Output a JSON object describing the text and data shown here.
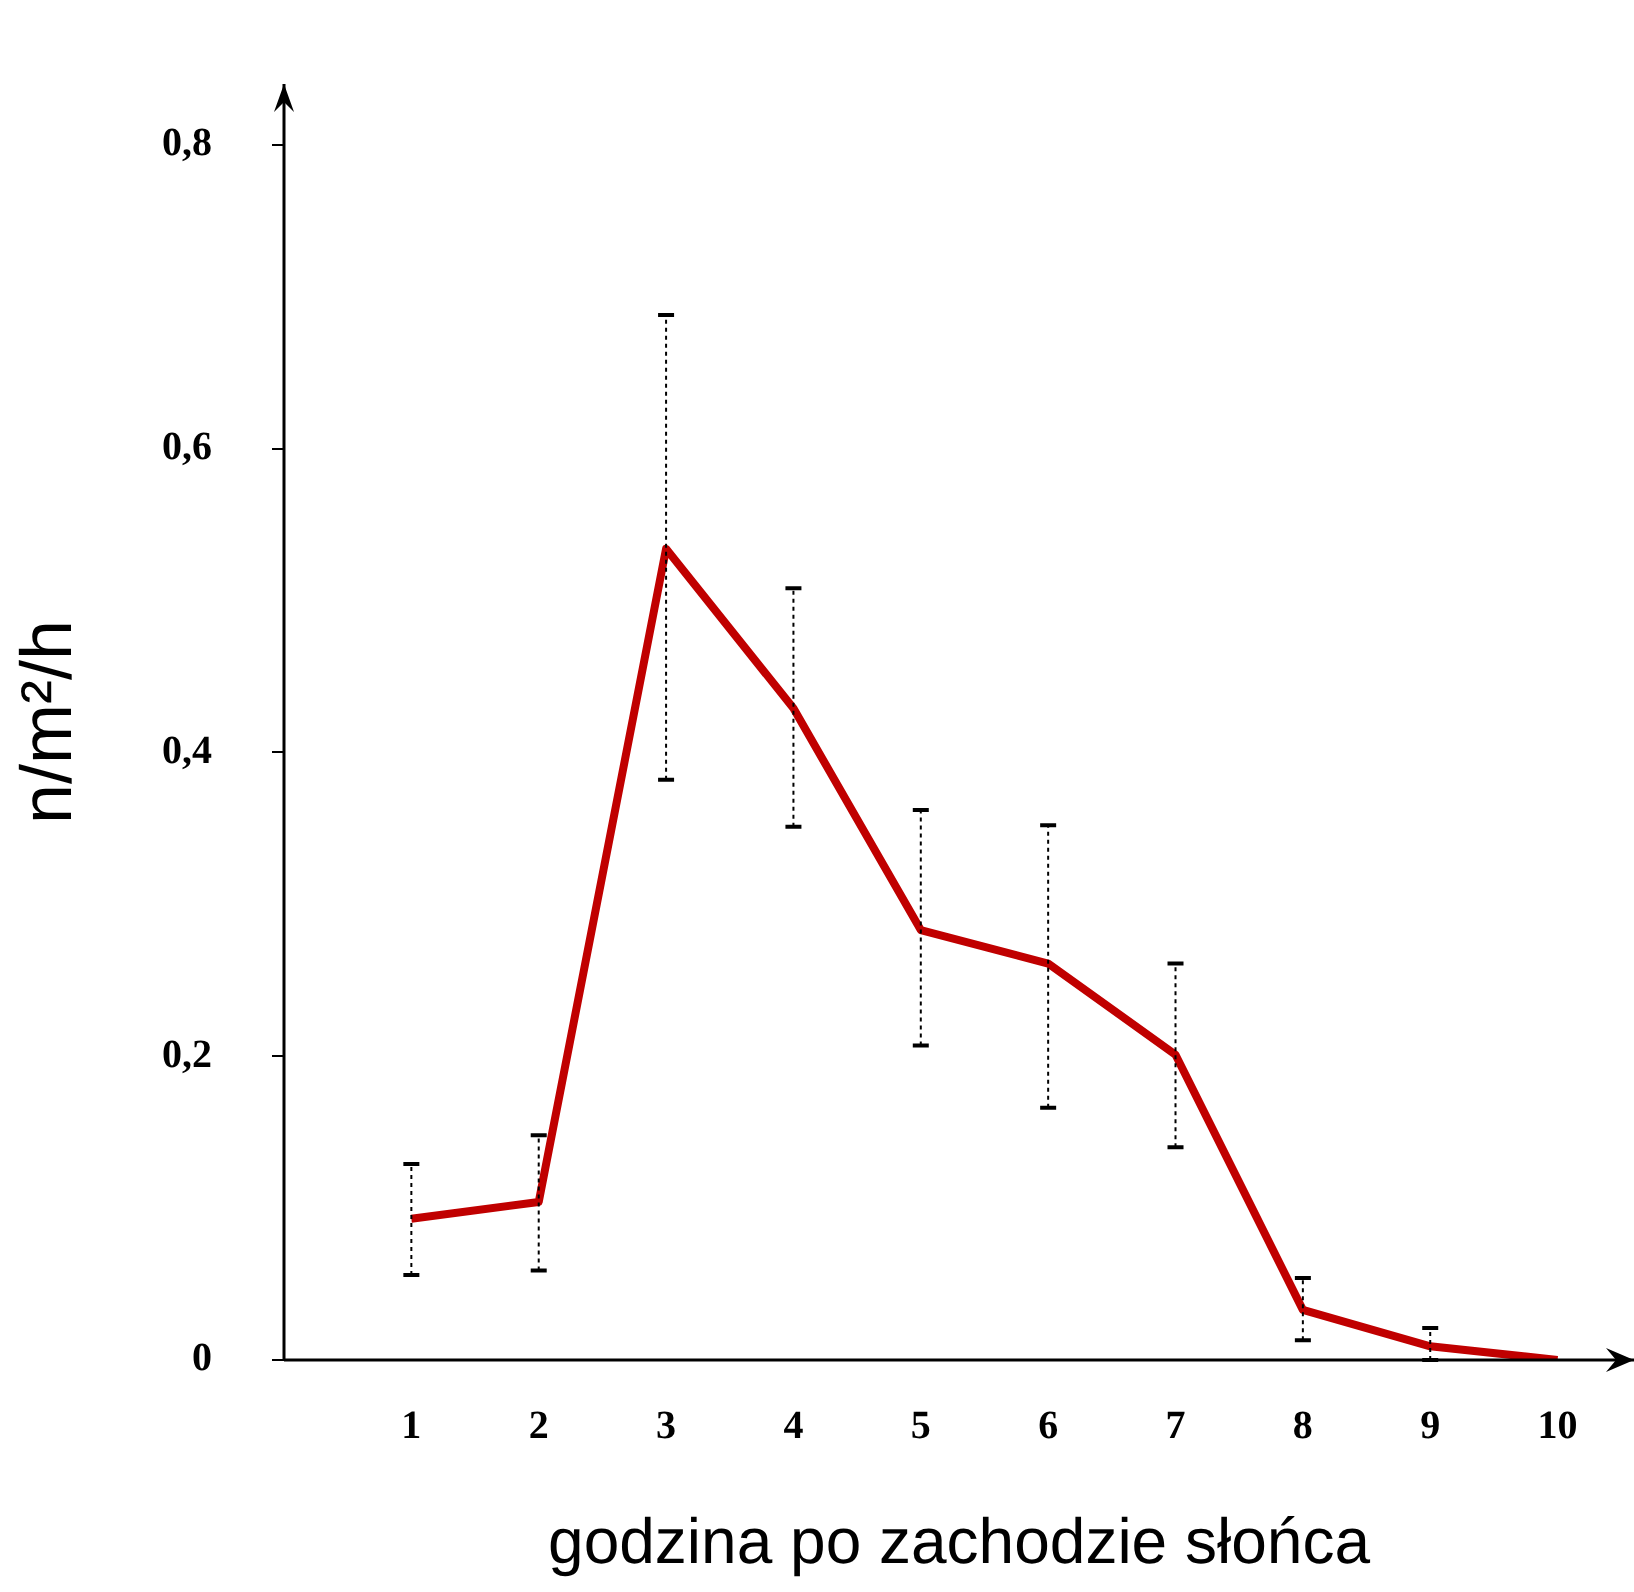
{
  "chart_data": {
    "type": "line",
    "xlabel": "godzina po zachodzie słońca",
    "ylabel": "n/m²/h",
    "x": [
      1,
      2,
      3,
      4,
      5,
      6,
      7,
      8,
      9,
      10
    ],
    "series": [
      {
        "color": "#c00000",
        "values": [
          0.093,
          0.104,
          0.534,
          0.429,
          0.283,
          0.261,
          0.201,
          0.033,
          0.009,
          0
        ],
        "errors": [
          [
            0.056,
            0.129
          ],
          [
            0.059,
            0.148
          ],
          [
            0.382,
            0.688
          ],
          [
            0.351,
            0.508
          ],
          [
            0.207,
            0.362
          ],
          [
            0.166,
            0.352
          ],
          [
            0.14,
            0.261
          ],
          [
            0.013,
            0.054
          ],
          [
            0,
            0.021
          ],
          null
        ]
      }
    ],
    "xlim": [
      0,
      10.6
    ],
    "xticks": [
      1,
      2,
      3,
      4,
      5,
      6,
      7,
      8,
      9,
      10
    ],
    "ylim": [
      0,
      0.84
    ],
    "yticks": [
      0,
      {
        "value": 0.2,
        "label": "0,2"
      },
      {
        "value": 0.4,
        "label": "0,4"
      },
      {
        "value": 0.6,
        "label": "0,6"
      },
      {
        "value": 0.8,
        "label": "0,8"
      }
    ],
    "grid": false,
    "legend": false,
    "marker": "none",
    "line_style": "solid"
  }
}
